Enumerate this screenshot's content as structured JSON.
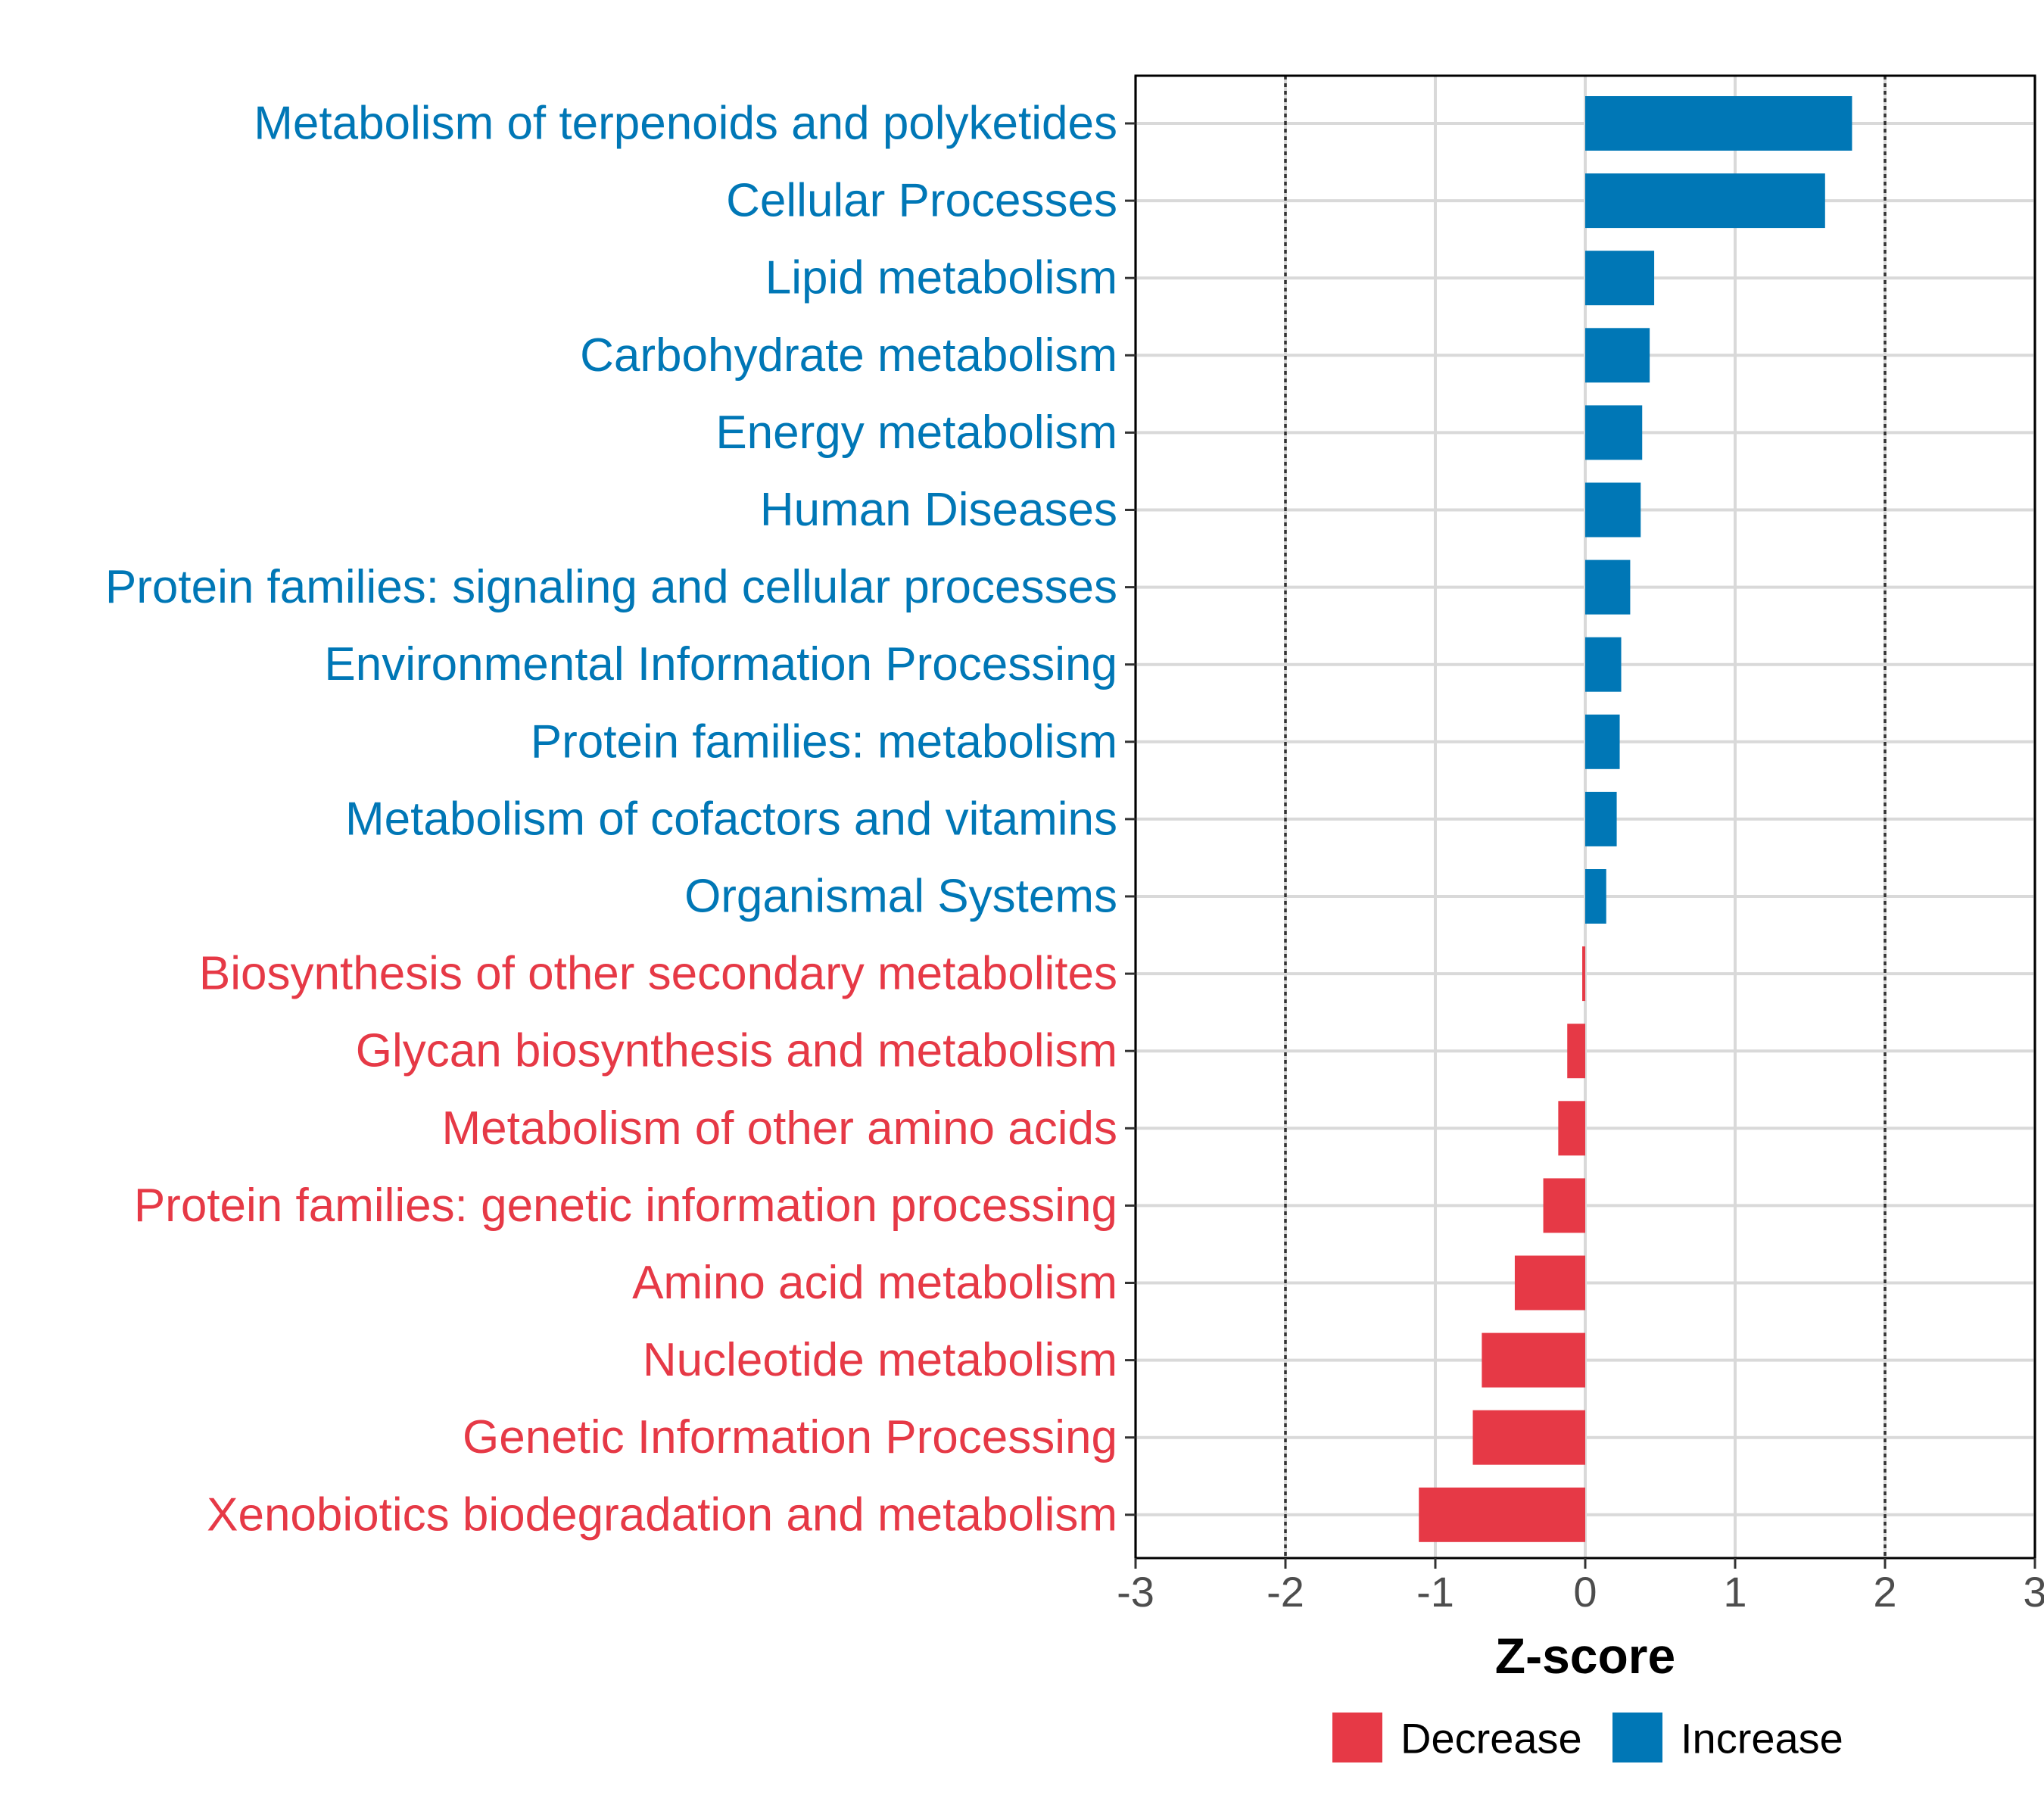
{
  "chart_data": {
    "type": "bar",
    "orientation": "horizontal",
    "title": "",
    "xlabel": "Z-score",
    "ylabel": "",
    "xlim": [
      -3,
      3
    ],
    "xticks": [
      -3,
      -2,
      -1,
      0,
      1,
      2,
      3
    ],
    "xtick_labels": [
      "-3",
      "-2",
      "-1",
      "0",
      "1",
      "2",
      "3"
    ],
    "reference_lines": [
      -2,
      2
    ],
    "grid": true,
    "legend_position": "bottom",
    "colors": {
      "Increase": "#0077B6",
      "Decrease": "#E63946"
    },
    "legend": [
      {
        "label": "Decrease",
        "color": "#E63946"
      },
      {
        "label": "Increase",
        "color": "#0077B6"
      }
    ],
    "bars": [
      {
        "category": "Metabolism of terpenoids and polyketides",
        "value": 1.78,
        "group": "Increase"
      },
      {
        "category": "Cellular Processes",
        "value": 1.6,
        "group": "Increase"
      },
      {
        "category": "Lipid metabolism",
        "value": 0.46,
        "group": "Increase"
      },
      {
        "category": "Carbohydrate metabolism",
        "value": 0.43,
        "group": "Increase"
      },
      {
        "category": "Energy metabolism",
        "value": 0.38,
        "group": "Increase"
      },
      {
        "category": "Human Diseases",
        "value": 0.37,
        "group": "Increase"
      },
      {
        "category": "Protein families: signaling and cellular processes",
        "value": 0.3,
        "group": "Increase"
      },
      {
        "category": "Environmental Information Processing",
        "value": 0.24,
        "group": "Increase"
      },
      {
        "category": "Protein families: metabolism",
        "value": 0.23,
        "group": "Increase"
      },
      {
        "category": "Metabolism of cofactors and vitamins",
        "value": 0.21,
        "group": "Increase"
      },
      {
        "category": "Organismal Systems",
        "value": 0.14,
        "group": "Increase"
      },
      {
        "category": "Biosynthesis of other secondary metabolites",
        "value": -0.02,
        "group": "Decrease"
      },
      {
        "category": "Glycan biosynthesis and metabolism",
        "value": -0.12,
        "group": "Decrease"
      },
      {
        "category": "Metabolism of other amino acids",
        "value": -0.18,
        "group": "Decrease"
      },
      {
        "category": "Protein families: genetic information processing",
        "value": -0.28,
        "group": "Decrease"
      },
      {
        "category": "Amino acid metabolism",
        "value": -0.47,
        "group": "Decrease"
      },
      {
        "category": "Nucleotide metabolism",
        "value": -0.69,
        "group": "Decrease"
      },
      {
        "category": "Genetic Information Processing",
        "value": -0.75,
        "group": "Decrease"
      },
      {
        "category": "Xenobiotics biodegradation and metabolism",
        "value": -1.11,
        "group": "Decrease"
      }
    ]
  }
}
